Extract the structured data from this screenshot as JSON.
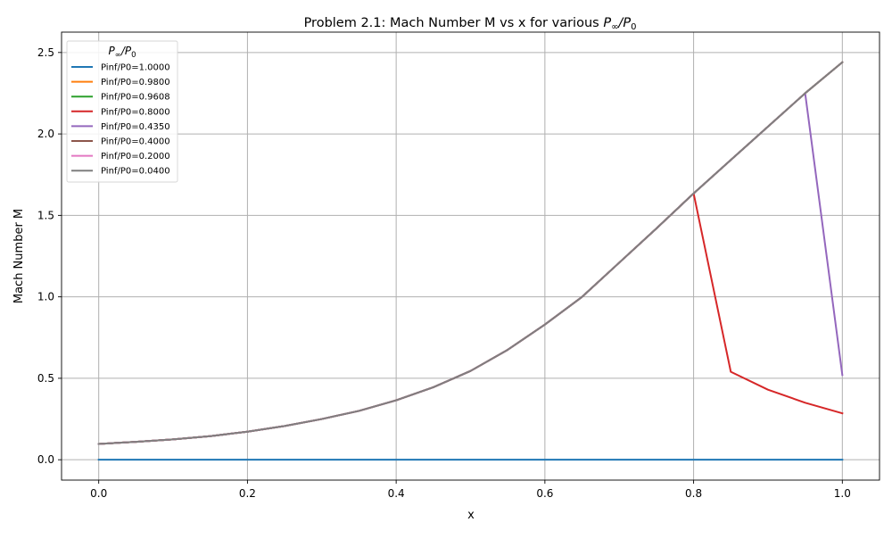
{
  "chart_data": {
    "type": "line",
    "title_prefix": "Problem 2.1: Mach Number M vs x for various ",
    "title_math_main": "P",
    "title_math_sub1": "∞",
    "title_math_slash": "/",
    "title_math_sub2": "0",
    "xlabel": "x",
    "ylabel": "Mach Number M",
    "xlim": [
      -0.05,
      1.05
    ],
    "ylim": [
      -0.125,
      2.625
    ],
    "xticks": [
      0.0,
      0.2,
      0.4,
      0.6,
      0.8,
      1.0
    ],
    "xtick_labels": [
      "0.0",
      "0.2",
      "0.4",
      "0.6",
      "0.8",
      "1.0"
    ],
    "yticks": [
      0.0,
      0.5,
      1.0,
      1.5,
      2.0,
      2.5
    ],
    "ytick_labels": [
      "0.0",
      "0.5",
      "1.0",
      "1.5",
      "2.0",
      "2.5"
    ],
    "grid": true,
    "legend": {
      "placement": "top-left",
      "title_main": "P",
      "title_sub1": "∞",
      "title_slash": "/",
      "title_sub2": "0"
    },
    "x": [
      0.0,
      0.05,
      0.1,
      0.15,
      0.2,
      0.25,
      0.3,
      0.35,
      0.4,
      0.45,
      0.5,
      0.55,
      0.6,
      0.65,
      0.7,
      0.75,
      0.8,
      0.85,
      0.9,
      0.95,
      1.0
    ],
    "series": [
      {
        "name": "Pinf/P0=1.0000",
        "color": "#1f77b4",
        "values": [
          0,
          0,
          0,
          0,
          0,
          0,
          0,
          0,
          0,
          0,
          0,
          0,
          0,
          0,
          0,
          0,
          0,
          0,
          0,
          0,
          0
        ]
      },
      {
        "name": "Pinf/P0=0.9800",
        "color": "#ff7f0e",
        "values": [
          0.097,
          0.11,
          0.125,
          0.145,
          0.172,
          0.207,
          0.25,
          0.3,
          0.365,
          0.445,
          0.545,
          0.675,
          0.83,
          1.0,
          1.21,
          1.42,
          1.635,
          1.84,
          2.045,
          2.25,
          2.44
        ]
      },
      {
        "name": "Pinf/P0=0.9608",
        "color": "#2ca02c",
        "values": [
          0.097,
          0.11,
          0.125,
          0.145,
          0.172,
          0.207,
          0.25,
          0.3,
          0.365,
          0.445,
          0.545,
          0.675,
          0.83,
          1.0,
          1.21,
          1.42,
          1.635,
          1.84,
          2.045,
          2.25,
          2.44
        ]
      },
      {
        "name": "Pinf/P0=0.8000",
        "color": "#d62728",
        "values": [
          0.097,
          0.11,
          0.125,
          0.145,
          0.172,
          0.207,
          0.25,
          0.3,
          0.365,
          0.445,
          0.545,
          0.675,
          0.83,
          1.0,
          1.21,
          1.42,
          1.635,
          0.54,
          0.43,
          0.35,
          0.285
        ]
      },
      {
        "name": "Pinf/P0=0.4350",
        "color": "#9467bd",
        "values": [
          0.097,
          0.11,
          0.125,
          0.145,
          0.172,
          0.207,
          0.25,
          0.3,
          0.365,
          0.445,
          0.545,
          0.675,
          0.83,
          1.0,
          1.21,
          1.42,
          1.635,
          1.84,
          2.045,
          2.25,
          0.52
        ]
      },
      {
        "name": "Pinf/P0=0.4000",
        "color": "#8c564b",
        "values": [
          0.097,
          0.11,
          0.125,
          0.145,
          0.172,
          0.207,
          0.25,
          0.3,
          0.365,
          0.445,
          0.545,
          0.675,
          0.83,
          1.0,
          1.21,
          1.42,
          1.635,
          1.84,
          2.045,
          2.25,
          2.44
        ]
      },
      {
        "name": "Pinf/P0=0.2000",
        "color": "#e377c2",
        "values": [
          0.097,
          0.11,
          0.125,
          0.145,
          0.172,
          0.207,
          0.25,
          0.3,
          0.365,
          0.445,
          0.545,
          0.675,
          0.83,
          1.0,
          1.21,
          1.42,
          1.635,
          1.84,
          2.045,
          2.25,
          2.44
        ]
      },
      {
        "name": "Pinf/P0=0.0400",
        "color": "#7f7f7f",
        "values": [
          0.097,
          0.11,
          0.125,
          0.145,
          0.172,
          0.207,
          0.25,
          0.3,
          0.365,
          0.445,
          0.545,
          0.675,
          0.83,
          1.0,
          1.21,
          1.42,
          1.635,
          1.84,
          2.045,
          2.25,
          2.44
        ]
      }
    ]
  }
}
